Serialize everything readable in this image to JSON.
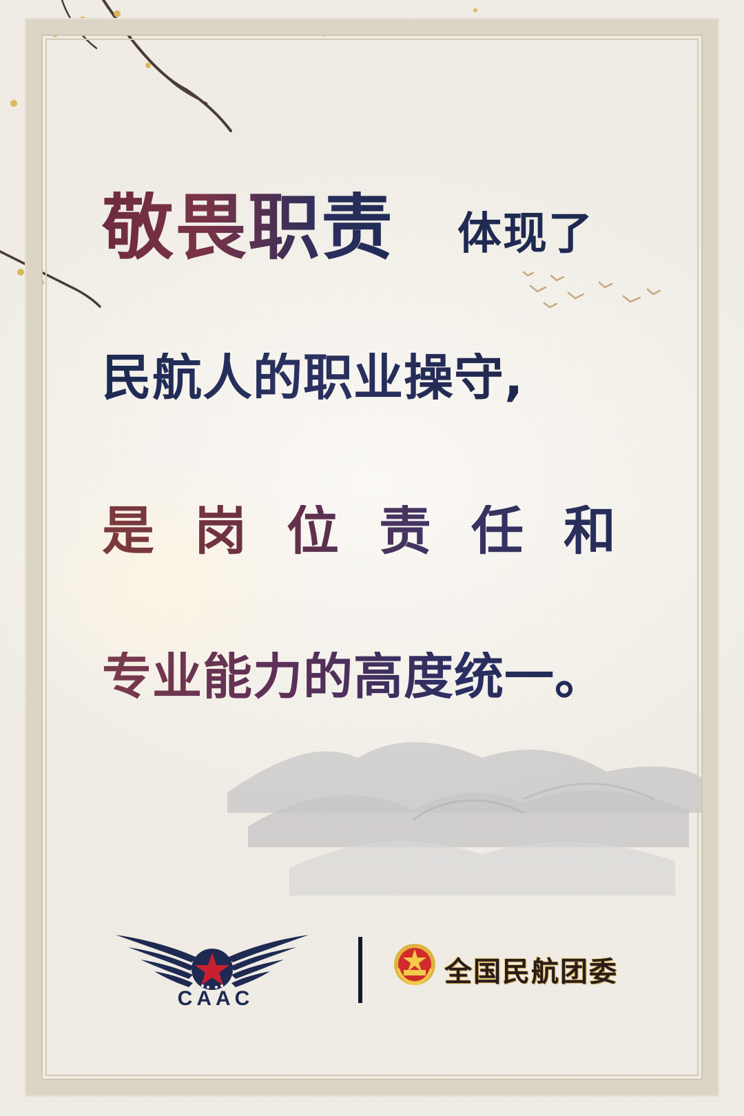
{
  "poster": {
    "headline_emphasis": "敬畏职责",
    "headline_rest": "体现了",
    "line2": "民航人的职业操守,",
    "line3": "是岗位责任和",
    "line4": "专业能力的高度统一。"
  },
  "footer": {
    "caac_logo_text": "CAAC",
    "organization_name": "全国民航团委"
  },
  "colors": {
    "navy": "#1f2a52",
    "plum": "#6e2b3f",
    "frame": "#dcd5c5"
  },
  "icons": [
    "caac-wings-logo",
    "youth-league-emblem",
    "plum-branch",
    "flying-birds",
    "ink-mountains"
  ]
}
